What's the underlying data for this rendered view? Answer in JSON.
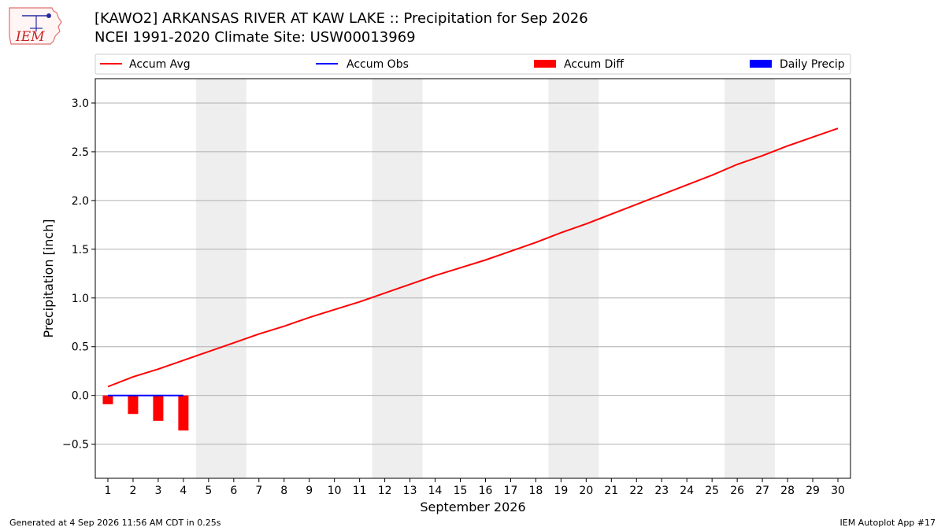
{
  "header": {
    "title": "[KAWO2] ARKANSAS RIVER  AT KAW LAKE :: Precipitation for Sep 2026",
    "subtitle": "NCEI 1991-2020 Climate Site: USW00013969",
    "logo_text": "IEM"
  },
  "footer": {
    "left": "Generated at 4 Sep 2026 11:56 AM CDT in 0.25s",
    "right": "IEM Autoplot App #17"
  },
  "colors": {
    "avg": "#ff0000",
    "obs": "#0000ff",
    "diff": "#ff0000",
    "daily": "#0000ff",
    "weekend": "#eeeeee",
    "grid": "#b0b0b0"
  },
  "chart_data": {
    "type": "line",
    "xlabel": "September 2026",
    "ylabel": "Precipitation [inch]",
    "xlim": [
      0.5,
      30.5
    ],
    "ylim": [
      -0.85,
      3.25
    ],
    "yticks": [
      -0.5,
      0.0,
      0.5,
      1.0,
      1.5,
      2.0,
      2.5,
      3.0
    ],
    "ytick_labels": [
      "−0.5",
      "0.0",
      "0.5",
      "1.0",
      "1.5",
      "2.0",
      "2.5",
      "3.0"
    ],
    "x": [
      1,
      2,
      3,
      4,
      5,
      6,
      7,
      8,
      9,
      10,
      11,
      12,
      13,
      14,
      15,
      16,
      17,
      18,
      19,
      20,
      21,
      22,
      23,
      24,
      25,
      26,
      27,
      28,
      29,
      30
    ],
    "xtick_labels": [
      "1",
      "2",
      "3",
      "4",
      "5",
      "6",
      "7",
      "8",
      "9",
      "10",
      "11",
      "12",
      "13",
      "14",
      "15",
      "16",
      "17",
      "18",
      "19",
      "20",
      "21",
      "22",
      "23",
      "24",
      "25",
      "26",
      "27",
      "28",
      "29",
      "30"
    ],
    "weekend_spans": [
      [
        4.5,
        6.5
      ],
      [
        11.5,
        13.5
      ],
      [
        18.5,
        20.5
      ],
      [
        25.5,
        27.5
      ]
    ],
    "grid": "y",
    "legend": {
      "placement": "top",
      "entries": [
        "Accum Avg",
        "Accum Obs",
        "Accum Diff",
        "Daily Precip"
      ]
    },
    "series": [
      {
        "name": "Accum Avg",
        "type": "line",
        "x": [
          1,
          2,
          3,
          4,
          5,
          6,
          7,
          8,
          9,
          10,
          11,
          12,
          13,
          14,
          15,
          16,
          17,
          18,
          19,
          20,
          21,
          22,
          23,
          24,
          25,
          26,
          27,
          28,
          29,
          30
        ],
        "values": [
          0.09,
          0.19,
          0.27,
          0.36,
          0.45,
          0.54,
          0.63,
          0.71,
          0.8,
          0.88,
          0.96,
          1.05,
          1.14,
          1.23,
          1.31,
          1.39,
          1.48,
          1.57,
          1.67,
          1.76,
          1.86,
          1.96,
          2.06,
          2.16,
          2.26,
          2.37,
          2.46,
          2.56,
          2.65,
          2.74
        ]
      },
      {
        "name": "Accum Obs",
        "type": "line",
        "x": [
          1,
          2,
          3,
          4
        ],
        "values": [
          0.0,
          0.0,
          0.0,
          0.0
        ]
      },
      {
        "name": "Accum Diff",
        "type": "bar",
        "x": [
          1,
          2,
          3,
          4
        ],
        "values": [
          -0.09,
          -0.19,
          -0.26,
          -0.36
        ]
      },
      {
        "name": "Daily Precip",
        "type": "bar",
        "x": [
          1,
          2,
          3,
          4
        ],
        "values": [
          0.0,
          0.0,
          0.0,
          0.0
        ]
      }
    ]
  }
}
